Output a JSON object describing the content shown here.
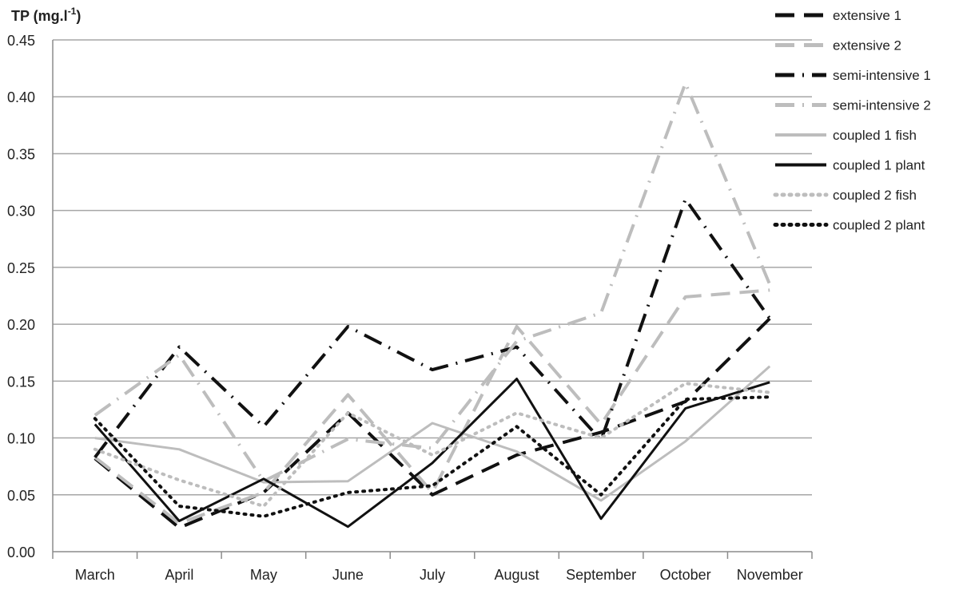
{
  "chart_data": {
    "type": "line",
    "ylabel": "TP (mg.l",
    "ylabel_sup": "-1",
    "ylabel_close": ")",
    "categories": [
      "March",
      "April",
      "May",
      "June",
      "July",
      "August",
      "September",
      "October",
      "November"
    ],
    "ylim": [
      0,
      0.45
    ],
    "yticks": [
      "0.00",
      "0.05",
      "0.10",
      "0.15",
      "0.20",
      "0.25",
      "0.30",
      "0.35",
      "0.40",
      "0.45"
    ],
    "grid": true,
    "legend_position": "top-right",
    "series": [
      {
        "name": "extensive 1",
        "color": "#111111",
        "dash": "24,12",
        "width": 4,
        "values": [
          0.082,
          0.021,
          0.052,
          0.122,
          0.05,
          0.085,
          0.105,
          0.132,
          0.205
        ]
      },
      {
        "name": "extensive 2",
        "color": "#bdbdbd",
        "dash": "24,12",
        "width": 4,
        "values": [
          0.083,
          0.025,
          0.052,
          0.138,
          0.052,
          0.198,
          0.112,
          0.224,
          0.23
        ]
      },
      {
        "name": "semi-intensive 1",
        "color": "#111111",
        "dash": "24,10,2,10",
        "width": 4,
        "values": [
          0.083,
          0.18,
          0.11,
          0.198,
          0.16,
          0.18,
          0.098,
          0.31,
          0.205
        ]
      },
      {
        "name": "semi-intensive 2",
        "color": "#bdbdbd",
        "dash": "24,10,2,10",
        "width": 4,
        "values": [
          0.12,
          0.173,
          0.062,
          0.099,
          0.091,
          0.185,
          0.21,
          0.412,
          0.235
        ]
      },
      {
        "name": "coupled 1 fish",
        "color": "#bdbdbd",
        "dash": "",
        "width": 3,
        "values": [
          0.1,
          0.09,
          0.061,
          0.062,
          0.113,
          0.088,
          0.045,
          0.097,
          0.163
        ]
      },
      {
        "name": "coupled 1 plant",
        "color": "#111111",
        "dash": "",
        "width": 3,
        "values": [
          0.112,
          0.027,
          0.064,
          0.022,
          0.078,
          0.152,
          0.029,
          0.126,
          0.149
        ]
      },
      {
        "name": "coupled 2 fish",
        "color": "#bdbdbd",
        "dash": "2,7",
        "width": 4,
        "values": [
          0.09,
          0.063,
          0.04,
          0.122,
          0.085,
          0.122,
          0.1,
          0.148,
          0.14
        ]
      },
      {
        "name": "coupled 2 plant",
        "color": "#111111",
        "dash": "2,7",
        "width": 4,
        "values": [
          0.117,
          0.04,
          0.031,
          0.052,
          0.058,
          0.11,
          0.05,
          0.134,
          0.136
        ]
      }
    ]
  }
}
